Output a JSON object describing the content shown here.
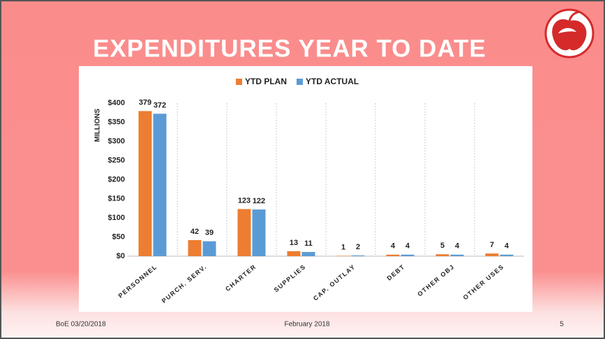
{
  "slide": {
    "title": "EXPENDITURES YEAR TO DATE",
    "footer_left": "BoE 03/20/2018",
    "footer_center": "February 2018",
    "page_number": 5
  },
  "chart_data": {
    "type": "bar",
    "categories": [
      "PERSONNEL",
      "PURCH. SERV.",
      "CHARTER",
      "SUPPLIES",
      "CAP. OUTLAY",
      "DEBT",
      "OTHER OBJ",
      "OTHER USES"
    ],
    "series": [
      {
        "name": "YTD PLAN",
        "color": "#ed7d31",
        "values": [
          379,
          42,
          123,
          13,
          1,
          4,
          5,
          7
        ]
      },
      {
        "name": "YTD ACTUAL",
        "color": "#5b9bd5",
        "values": [
          372,
          39,
          122,
          11,
          2,
          4,
          4,
          4
        ]
      }
    ],
    "ylabel": "MILLIONS",
    "ylim": [
      0,
      400
    ],
    "yticks": [
      {
        "value": 0,
        "label": "$0"
      },
      {
        "value": 50,
        "label": "$50"
      },
      {
        "value": 100,
        "label": "$100"
      },
      {
        "value": 150,
        "label": "$150"
      },
      {
        "value": 200,
        "label": "$200"
      },
      {
        "value": 250,
        "label": "$250"
      },
      {
        "value": 300,
        "label": "$300"
      },
      {
        "value": 350,
        "label": "$350"
      },
      {
        "value": 400,
        "label": "$400"
      }
    ],
    "grid": true,
    "legend": "top"
  }
}
